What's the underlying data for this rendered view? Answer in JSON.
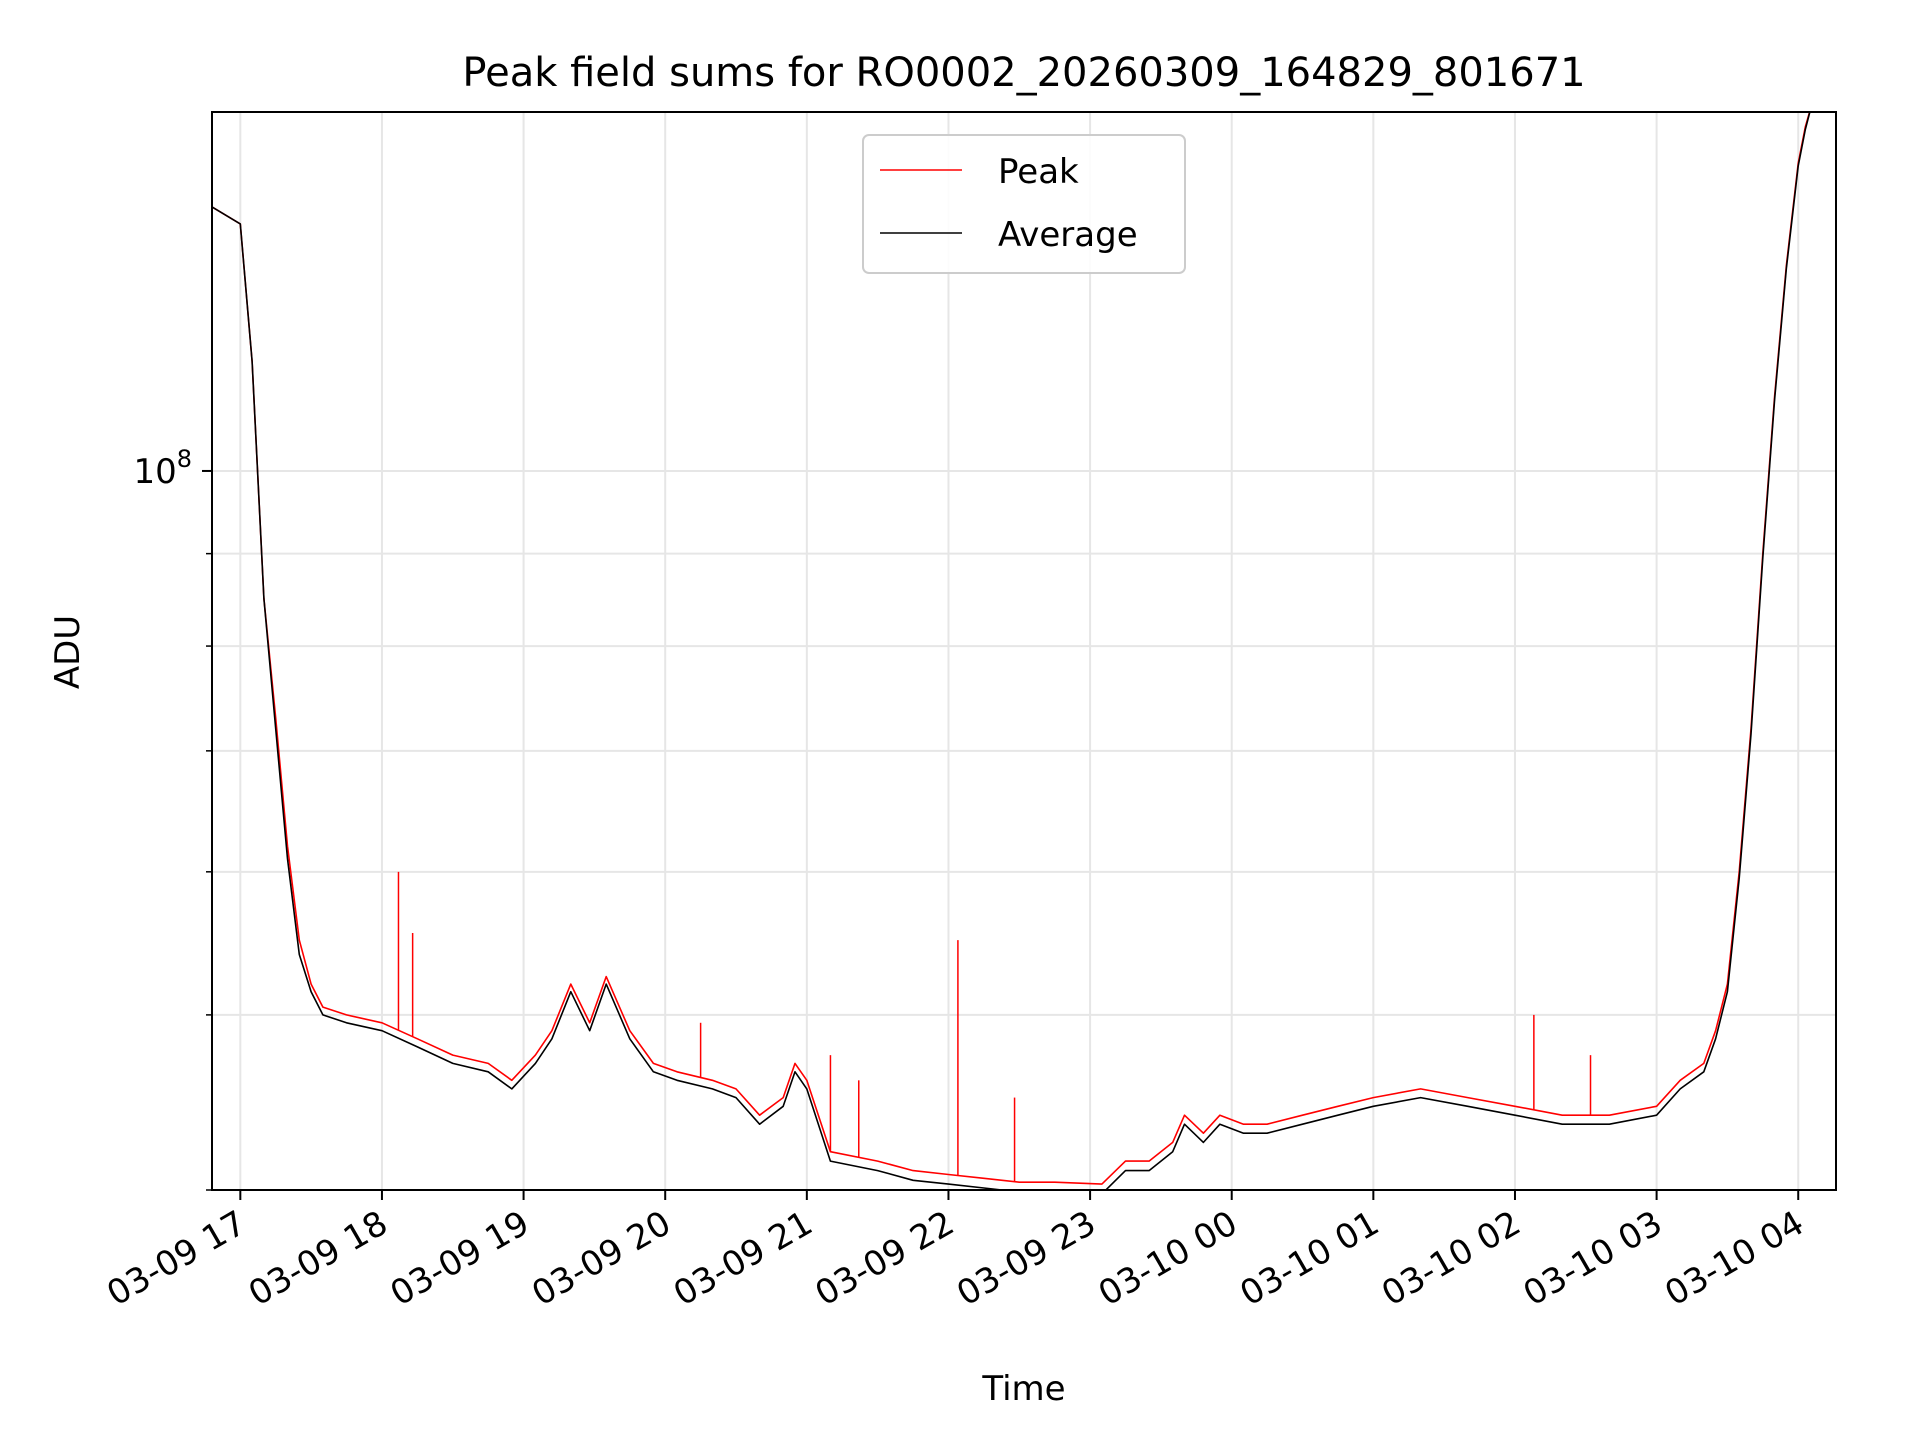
{
  "chart_data": {
    "type": "line",
    "title": "Peak field sums for RO0002_20260309_164829_801671",
    "xlabel": "Time",
    "ylabel": "ADU",
    "y_scale": "log",
    "grid": true,
    "legend_position": "upper-center",
    "xlim": [
      "2026-03-09 16:48",
      "2026-03-10 04:16"
    ],
    "ylim": [
      40000000,
      158000000
    ],
    "x_ticks": [
      {
        "value": "2026-03-09 17:00",
        "label": "03-09 17"
      },
      {
        "value": "2026-03-09 18:00",
        "label": "03-09 18"
      },
      {
        "value": "2026-03-09 19:00",
        "label": "03-09 19"
      },
      {
        "value": "2026-03-09 20:00",
        "label": "03-09 20"
      },
      {
        "value": "2026-03-09 21:00",
        "label": "03-09 21"
      },
      {
        "value": "2026-03-09 22:00",
        "label": "03-09 22"
      },
      {
        "value": "2026-03-09 23:00",
        "label": "03-09 23"
      },
      {
        "value": "2026-03-10 00:00",
        "label": "03-10 00"
      },
      {
        "value": "2026-03-10 01:00",
        "label": "03-10 01"
      },
      {
        "value": "2026-03-10 02:00",
        "label": "03-10 02"
      },
      {
        "value": "2026-03-10 03:00",
        "label": "03-10 03"
      },
      {
        "value": "2026-03-10 04:00",
        "label": "03-10 04"
      }
    ],
    "y_major_ticks": [
      {
        "value": 100000000,
        "base": "10",
        "exponent": "8"
      }
    ],
    "y_minor_ticks": [
      40000000,
      50000000,
      60000000,
      70000000,
      80000000,
      90000000,
      200000000
    ],
    "series": [
      {
        "name": "Peak",
        "color": "#ff0000",
        "x": [
          "2026-03-09 16:48",
          "2026-03-09 17:00",
          "2026-03-09 17:05",
          "2026-03-09 17:10",
          "2026-03-09 17:15",
          "2026-03-09 17:20",
          "2026-03-09 17:25",
          "2026-03-09 17:30",
          "2026-03-09 17:35",
          "2026-03-09 17:45",
          "2026-03-09 18:00",
          "2026-03-09 18:15",
          "2026-03-09 18:30",
          "2026-03-09 18:45",
          "2026-03-09 18:55",
          "2026-03-09 19:05",
          "2026-03-09 19:12",
          "2026-03-09 19:20",
          "2026-03-09 19:28",
          "2026-03-09 19:35",
          "2026-03-09 19:45",
          "2026-03-09 19:55",
          "2026-03-09 20:05",
          "2026-03-09 20:20",
          "2026-03-09 20:30",
          "2026-03-09 20:40",
          "2026-03-09 20:50",
          "2026-03-09 20:55",
          "2026-03-09 21:00",
          "2026-03-09 21:10",
          "2026-03-09 21:30",
          "2026-03-09 21:45",
          "2026-03-09 22:00",
          "2026-03-09 22:15",
          "2026-03-09 22:30",
          "2026-03-09 22:45",
          "2026-03-09 23:05",
          "2026-03-09 23:15",
          "2026-03-09 23:25",
          "2026-03-09 23:35",
          "2026-03-09 23:40",
          "2026-03-09 23:48",
          "2026-03-09 23:55",
          "2026-03-10 00:05",
          "2026-03-10 00:15",
          "2026-03-10 00:30",
          "2026-03-10 00:45",
          "2026-03-10 01:00",
          "2026-03-10 01:20",
          "2026-03-10 01:40",
          "2026-03-10 02:00",
          "2026-03-10 02:20",
          "2026-03-10 02:40",
          "2026-03-10 03:00",
          "2026-03-10 03:10",
          "2026-03-10 03:20",
          "2026-03-10 03:25",
          "2026-03-10 03:30",
          "2026-03-10 03:35",
          "2026-03-10 03:40",
          "2026-03-10 03:45",
          "2026-03-10 03:50",
          "2026-03-10 03:55",
          "2026-03-10 04:00",
          "2026-03-10 04:03",
          "2026-03-10 04:06"
        ],
        "y": [
          140000000,
          137000000,
          115000000,
          85000000,
          73000000,
          62000000,
          55000000,
          52000000,
          50500000,
          50000000,
          49500000,
          48500000,
          47500000,
          47000000,
          46000000,
          47500000,
          49000000,
          52000000,
          49500000,
          52500000,
          49000000,
          47000000,
          46500000,
          46000000,
          45500000,
          44000000,
          45000000,
          47000000,
          46000000,
          42000000,
          41500000,
          41000000,
          40800000,
          40600000,
          40400000,
          40400000,
          40300000,
          41500000,
          41500000,
          42500000,
          44000000,
          43000000,
          44000000,
          43500000,
          43500000,
          44000000,
          44500000,
          45000000,
          45500000,
          45000000,
          44500000,
          44000000,
          44000000,
          44500000,
          46000000,
          47000000,
          49000000,
          52000000,
          60000000,
          72000000,
          90000000,
          110000000,
          130000000,
          148000000,
          155000000,
          160000000
        ]
      },
      {
        "name": "Average",
        "color": "#000000",
        "x": [
          "2026-03-09 16:48",
          "2026-03-09 17:00",
          "2026-03-09 17:05",
          "2026-03-09 17:10",
          "2026-03-09 17:15",
          "2026-03-09 17:20",
          "2026-03-09 17:25",
          "2026-03-09 17:30",
          "2026-03-09 17:35",
          "2026-03-09 17:45",
          "2026-03-09 18:00",
          "2026-03-09 18:15",
          "2026-03-09 18:30",
          "2026-03-09 18:45",
          "2026-03-09 18:55",
          "2026-03-09 19:05",
          "2026-03-09 19:12",
          "2026-03-09 19:20",
          "2026-03-09 19:28",
          "2026-03-09 19:35",
          "2026-03-09 19:45",
          "2026-03-09 19:55",
          "2026-03-09 20:05",
          "2026-03-09 20:20",
          "2026-03-09 20:30",
          "2026-03-09 20:40",
          "2026-03-09 20:50",
          "2026-03-09 20:55",
          "2026-03-09 21:00",
          "2026-03-09 21:10",
          "2026-03-09 21:30",
          "2026-03-09 21:45",
          "2026-03-09 22:00",
          "2026-03-09 22:15",
          "2026-03-09 22:30",
          "2026-03-09 22:45",
          "2026-03-09 23:05",
          "2026-03-09 23:15",
          "2026-03-09 23:25",
          "2026-03-09 23:35",
          "2026-03-09 23:40",
          "2026-03-09 23:48",
          "2026-03-09 23:55",
          "2026-03-10 00:05",
          "2026-03-10 00:15",
          "2026-03-10 00:30",
          "2026-03-10 00:45",
          "2026-03-10 01:00",
          "2026-03-10 01:20",
          "2026-03-10 01:40",
          "2026-03-10 02:00",
          "2026-03-10 02:20",
          "2026-03-10 02:40",
          "2026-03-10 03:00",
          "2026-03-10 03:10",
          "2026-03-10 03:20",
          "2026-03-10 03:25",
          "2026-03-10 03:30",
          "2026-03-10 03:35",
          "2026-03-10 03:40",
          "2026-03-10 03:45",
          "2026-03-10 03:50",
          "2026-03-10 03:55",
          "2026-03-10 04:00",
          "2026-03-10 04:03",
          "2026-03-10 04:06"
        ],
        "y": [
          140000000,
          137000000,
          115000000,
          85000000,
          72000000,
          61000000,
          54000000,
          51500000,
          50000000,
          49500000,
          49000000,
          48000000,
          47000000,
          46500000,
          45500000,
          47000000,
          48500000,
          51500000,
          49000000,
          52000000,
          48500000,
          46500000,
          46000000,
          45500000,
          45000000,
          43500000,
          44500000,
          46500000,
          45500000,
          41500000,
          41000000,
          40500000,
          40300000,
          40100000,
          39900000,
          39900000,
          39800000,
          41000000,
          41000000,
          42000000,
          43500000,
          42500000,
          43500000,
          43000000,
          43000000,
          43500000,
          44000000,
          44500000,
          45000000,
          44500000,
          44000000,
          43500000,
          43500000,
          44000000,
          45500000,
          46500000,
          48500000,
          51500000,
          59500000,
          71500000,
          89500000,
          109500000,
          129500000,
          147500000,
          154500000,
          160000000
        ]
      }
    ],
    "spikes": [
      {
        "x": "2026-03-09 18:07",
        "y": 60000000
      },
      {
        "x": "2026-03-09 18:13",
        "y": 55500000
      },
      {
        "x": "2026-03-09 20:15",
        "y": 49500000
      },
      {
        "x": "2026-03-09 21:10",
        "y": 47500000
      },
      {
        "x": "2026-03-09 21:22",
        "y": 46000000
      },
      {
        "x": "2026-03-09 22:04",
        "y": 55000000
      },
      {
        "x": "2026-03-09 22:28",
        "y": 45000000
      },
      {
        "x": "2026-03-10 02:08",
        "y": 50000000
      },
      {
        "x": "2026-03-10 02:32",
        "y": 47500000
      }
    ]
  }
}
